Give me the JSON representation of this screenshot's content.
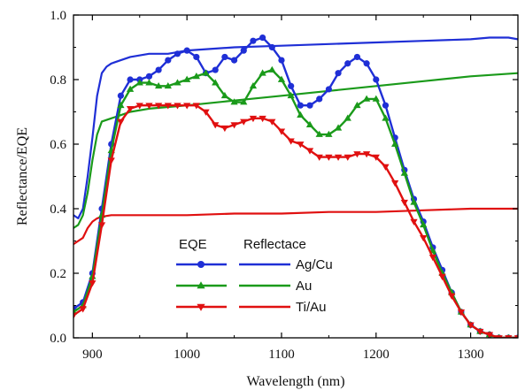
{
  "chart_data": {
    "type": "line",
    "title": "",
    "xlabel": "Wavelength (nm)",
    "ylabel": "Reflectance/EQE",
    "xlim": [
      880,
      1350
    ],
    "ylim": [
      0.0,
      1.0
    ],
    "xticks": [
      900,
      1000,
      1100,
      1200,
      1300
    ],
    "yticks": [
      0.0,
      0.2,
      0.4,
      0.6,
      0.8,
      1.0
    ],
    "xtick_labels": [
      "900",
      "1000",
      "1100",
      "1200",
      "1300"
    ],
    "ytick_labels": [
      "0.0",
      "0.2",
      "0.4",
      "0.6",
      "0.8",
      "1.0"
    ],
    "grid": false,
    "legend": {
      "placement": "bottom-center",
      "header_eqe": "EQE",
      "header_reflectance": "Reflectace",
      "entries": [
        "Ag/Cu",
        "Au",
        "Ti/Au"
      ]
    },
    "eqe_series": [
      {
        "name": "Ag/Cu",
        "color": "#1f2fd6",
        "marker": "circle",
        "x": [
          880,
          890,
          900,
          910,
          920,
          930,
          940,
          950,
          960,
          970,
          980,
          990,
          1000,
          1010,
          1020,
          1030,
          1040,
          1050,
          1060,
          1070,
          1080,
          1090,
          1100,
          1110,
          1120,
          1130,
          1140,
          1150,
          1160,
          1170,
          1180,
          1190,
          1200,
          1210,
          1220,
          1230,
          1240,
          1250,
          1260,
          1270,
          1280,
          1290,
          1300,
          1310,
          1320,
          1330,
          1340,
          1350
        ],
        "y": [
          0.09,
          0.11,
          0.2,
          0.4,
          0.6,
          0.75,
          0.8,
          0.8,
          0.81,
          0.83,
          0.86,
          0.88,
          0.89,
          0.87,
          0.82,
          0.83,
          0.87,
          0.86,
          0.89,
          0.92,
          0.93,
          0.9,
          0.86,
          0.78,
          0.72,
          0.72,
          0.74,
          0.77,
          0.82,
          0.85,
          0.87,
          0.85,
          0.8,
          0.72,
          0.62,
          0.52,
          0.43,
          0.36,
          0.28,
          0.21,
          0.14,
          0.08,
          0.04,
          0.02,
          0.01,
          0.0,
          0.0,
          0.0
        ]
      },
      {
        "name": "Au",
        "color": "#1a9a1a",
        "marker": "triangle-up",
        "x": [
          880,
          890,
          900,
          910,
          920,
          930,
          940,
          950,
          960,
          970,
          980,
          990,
          1000,
          1010,
          1020,
          1030,
          1040,
          1050,
          1060,
          1070,
          1080,
          1090,
          1100,
          1110,
          1120,
          1130,
          1140,
          1150,
          1160,
          1170,
          1180,
          1190,
          1200,
          1210,
          1220,
          1230,
          1240,
          1250,
          1260,
          1270,
          1280,
          1290,
          1300,
          1310,
          1320,
          1330,
          1340,
          1350
        ],
        "y": [
          0.08,
          0.1,
          0.19,
          0.38,
          0.58,
          0.72,
          0.77,
          0.79,
          0.79,
          0.78,
          0.78,
          0.79,
          0.8,
          0.81,
          0.82,
          0.79,
          0.75,
          0.73,
          0.73,
          0.78,
          0.82,
          0.83,
          0.8,
          0.75,
          0.69,
          0.66,
          0.63,
          0.63,
          0.65,
          0.68,
          0.72,
          0.74,
          0.74,
          0.68,
          0.6,
          0.51,
          0.42,
          0.35,
          0.27,
          0.2,
          0.14,
          0.08,
          0.04,
          0.02,
          0.01,
          0.0,
          0.0,
          0.0
        ]
      },
      {
        "name": "Ti/Au",
        "color": "#e01010",
        "marker": "triangle-down",
        "x": [
          880,
          890,
          900,
          910,
          920,
          930,
          940,
          950,
          960,
          970,
          980,
          990,
          1000,
          1010,
          1020,
          1030,
          1040,
          1050,
          1060,
          1070,
          1080,
          1090,
          1100,
          1110,
          1120,
          1130,
          1140,
          1150,
          1160,
          1170,
          1180,
          1190,
          1200,
          1210,
          1220,
          1230,
          1240,
          1250,
          1260,
          1270,
          1280,
          1290,
          1300,
          1310,
          1320,
          1330,
          1340,
          1350
        ],
        "y": [
          0.07,
          0.09,
          0.17,
          0.35,
          0.55,
          0.67,
          0.71,
          0.72,
          0.72,
          0.72,
          0.72,
          0.72,
          0.72,
          0.72,
          0.7,
          0.66,
          0.65,
          0.66,
          0.67,
          0.68,
          0.68,
          0.67,
          0.64,
          0.61,
          0.6,
          0.58,
          0.56,
          0.56,
          0.56,
          0.56,
          0.57,
          0.57,
          0.56,
          0.53,
          0.48,
          0.42,
          0.36,
          0.31,
          0.25,
          0.19,
          0.13,
          0.08,
          0.04,
          0.02,
          0.01,
          0.0,
          0.0,
          0.0
        ]
      }
    ],
    "reflectance_series": [
      {
        "name": "Ag/Cu",
        "color": "#1f2fd6",
        "x": [
          880,
          885,
          890,
          895,
          900,
          905,
          910,
          915,
          920,
          930,
          940,
          960,
          980,
          1000,
          1050,
          1100,
          1150,
          1200,
          1250,
          1300,
          1320,
          1340,
          1350
        ],
        "y": [
          0.38,
          0.37,
          0.4,
          0.5,
          0.62,
          0.75,
          0.82,
          0.84,
          0.85,
          0.86,
          0.87,
          0.88,
          0.88,
          0.89,
          0.9,
          0.905,
          0.91,
          0.915,
          0.92,
          0.925,
          0.93,
          0.93,
          0.925
        ]
      },
      {
        "name": "Au",
        "color": "#1a9a1a",
        "x": [
          880,
          885,
          890,
          895,
          900,
          905,
          910,
          920,
          930,
          940,
          960,
          980,
          1000,
          1050,
          1100,
          1150,
          1200,
          1250,
          1300,
          1350
        ],
        "y": [
          0.34,
          0.35,
          0.38,
          0.45,
          0.55,
          0.63,
          0.67,
          0.68,
          0.69,
          0.7,
          0.71,
          0.715,
          0.72,
          0.735,
          0.75,
          0.765,
          0.78,
          0.795,
          0.81,
          0.82
        ]
      },
      {
        "name": "Ti/Au",
        "color": "#e01010",
        "x": [
          880,
          885,
          890,
          895,
          900,
          905,
          910,
          920,
          940,
          960,
          1000,
          1050,
          1100,
          1150,
          1200,
          1250,
          1300,
          1350
        ],
        "y": [
          0.29,
          0.3,
          0.31,
          0.34,
          0.36,
          0.37,
          0.375,
          0.38,
          0.38,
          0.38,
          0.38,
          0.385,
          0.385,
          0.39,
          0.39,
          0.395,
          0.4,
          0.4
        ]
      }
    ]
  }
}
